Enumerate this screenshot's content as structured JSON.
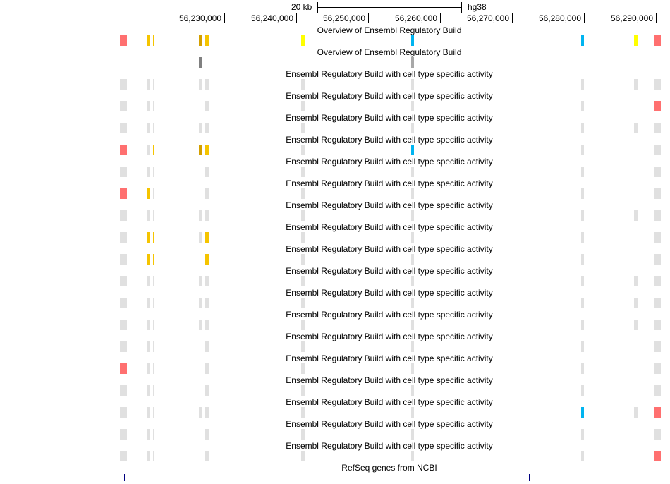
{
  "ruler": {
    "scale_label": "20 kb",
    "assembly": "hg38",
    "ticks": [
      "",
      "56,230,000",
      "56,240,000",
      "56,250,000",
      "56,260,000",
      "56,270,000",
      "56,280,000",
      "56,290,000"
    ]
  },
  "colors": {
    "g": "#e0e0e0",
    "r": "#ff7070",
    "y": "#ffff00",
    "o": "#f5c400",
    "d": "#d4a000",
    "b": "#00b4f0",
    "k": "#808080",
    "l": "#a8a8a8",
    "gene": "#000080"
  },
  "tracks": [
    {
      "label": "Overview of Ensembl Regulatory Build",
      "states": [
        "r",
        "o",
        "o",
        "d",
        "o",
        "y",
        "b",
        "b",
        "y",
        "r"
      ]
    },
    {
      "label": "Overview of Ensembl Regulatory Build",
      "states": [
        "n",
        "n",
        "n",
        "k",
        "n",
        "n",
        "l",
        "n",
        "n",
        "n"
      ]
    },
    {
      "label": "Ensembl Regulatory Build with cell type specific activity",
      "states": [
        "g",
        "g",
        "g",
        "g",
        "g",
        "g",
        "g",
        "g",
        "g",
        "g"
      ]
    },
    {
      "label": "Ensembl Regulatory Build with cell type specific activity",
      "states": [
        "g",
        "g",
        "g",
        "n",
        "g",
        "g",
        "g",
        "g",
        "n",
        "r"
      ]
    },
    {
      "label": "Ensembl Regulatory Build with cell type specific activity",
      "states": [
        "g",
        "g",
        "g",
        "g",
        "g",
        "g",
        "g",
        "g",
        "g",
        "g"
      ]
    },
    {
      "label": "Ensembl Regulatory Build with cell type specific activity",
      "states": [
        "r",
        "g",
        "o",
        "d",
        "o",
        "g",
        "b",
        "g",
        "n",
        "g"
      ]
    },
    {
      "label": "Ensembl Regulatory Build with cell type specific activity",
      "states": [
        "g",
        "g",
        "g",
        "n",
        "g",
        "g",
        "g",
        "g",
        "n",
        "g"
      ]
    },
    {
      "label": "Ensembl Regulatory Build with cell type specific activity",
      "states": [
        "r",
        "o",
        "g",
        "n",
        "g",
        "g",
        "g",
        "g",
        "n",
        "g"
      ]
    },
    {
      "label": "Ensembl Regulatory Build with cell type specific activity",
      "states": [
        "g",
        "g",
        "g",
        "g",
        "g",
        "g",
        "g",
        "g",
        "g",
        "g"
      ]
    },
    {
      "label": "Ensembl Regulatory Build with cell type specific activity",
      "states": [
        "g",
        "o",
        "o",
        "g",
        "o",
        "g",
        "g",
        "g",
        "n",
        "g"
      ]
    },
    {
      "label": "Ensembl Regulatory Build with cell type specific activity",
      "states": [
        "g",
        "o",
        "o",
        "n",
        "o",
        "g",
        "g",
        "g",
        "n",
        "g"
      ]
    },
    {
      "label": "Ensembl Regulatory Build with cell type specific activity",
      "states": [
        "g",
        "g",
        "g",
        "g",
        "g",
        "g",
        "g",
        "g",
        "g",
        "g"
      ]
    },
    {
      "label": "Ensembl Regulatory Build with cell type specific activity",
      "states": [
        "g",
        "g",
        "g",
        "g",
        "g",
        "g",
        "g",
        "g",
        "g",
        "g"
      ]
    },
    {
      "label": "Ensembl Regulatory Build with cell type specific activity",
      "states": [
        "g",
        "g",
        "g",
        "g",
        "g",
        "g",
        "g",
        "g",
        "g",
        "g"
      ]
    },
    {
      "label": "Ensembl Regulatory Build with cell type specific activity",
      "states": [
        "g",
        "g",
        "g",
        "n",
        "g",
        "g",
        "g",
        "g",
        "n",
        "g"
      ]
    },
    {
      "label": "Ensembl Regulatory Build with cell type specific activity",
      "states": [
        "r",
        "g",
        "g",
        "n",
        "g",
        "g",
        "g",
        "g",
        "n",
        "g"
      ]
    },
    {
      "label": "Ensembl Regulatory Build with cell type specific activity",
      "states": [
        "g",
        "g",
        "g",
        "n",
        "g",
        "g",
        "g",
        "g",
        "n",
        "g"
      ]
    },
    {
      "label": "Ensembl Regulatory Build with cell type specific activity",
      "states": [
        "g",
        "g",
        "g",
        "g",
        "g",
        "g",
        "g",
        "b",
        "g",
        "r"
      ]
    },
    {
      "label": "Ensembl Regulatory Build with cell type specific activity",
      "states": [
        "g",
        "g",
        "g",
        "n",
        "g",
        "g",
        "g",
        "g",
        "n",
        "g"
      ]
    },
    {
      "label": "Ensembl Regulatory Build with cell type specific activity",
      "states": [
        "g",
        "g",
        "g",
        "n",
        "g",
        "g",
        "g",
        "g",
        "n",
        "r"
      ]
    }
  ],
  "genes_track": {
    "label": "RefSeq genes from NCBI"
  }
}
